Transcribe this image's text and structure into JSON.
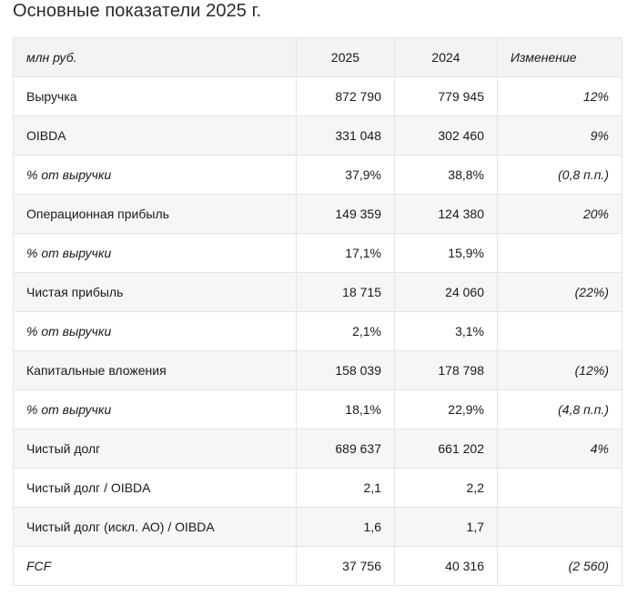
{
  "title": "Основные показатели 2025 г.",
  "table": {
    "header": {
      "label": "млн руб.",
      "year_2025": "2025",
      "year_2024": "2024",
      "change": "Изменение"
    },
    "rows": [
      {
        "label": "Выручка",
        "v2025": "872 790",
        "v2024": "779 945",
        "change": "12%",
        "italic_label": false
      },
      {
        "label": "OIBDA",
        "v2025": "331 048",
        "v2024": "302 460",
        "change": "9%",
        "italic_label": false
      },
      {
        "label": "% от выручки",
        "v2025": "37,9%",
        "v2024": "38,8%",
        "change": "(0,8 п.п.)",
        "italic_label": true
      },
      {
        "label": "Операционная прибыль",
        "v2025": "149 359",
        "v2024": "124 380",
        "change": "20%",
        "italic_label": false
      },
      {
        "label": "% от выручки",
        "v2025": "17,1%",
        "v2024": "15,9%",
        "change": "",
        "italic_label": true
      },
      {
        "label": "Чистая прибыль",
        "v2025": "18 715",
        "v2024": "24 060",
        "change": "(22%)",
        "italic_label": false
      },
      {
        "label": "% от выручки",
        "v2025": "2,1%",
        "v2024": "3,1%",
        "change": "",
        "italic_label": true
      },
      {
        "label": "Капитальные вложения",
        "v2025": "158 039",
        "v2024": "178 798",
        "change": "(12%)",
        "italic_label": false
      },
      {
        "label": "% от выручки",
        "v2025": "18,1%",
        "v2024": "22,9%",
        "change": "(4,8 п.п.)",
        "italic_label": true
      },
      {
        "label": "Чистый долг",
        "v2025": "689 637",
        "v2024": "661 202",
        "change": "4%",
        "italic_label": false
      },
      {
        "label": "Чистый долг / OIBDA",
        "v2025": "2,1",
        "v2024": "2,2",
        "change": "",
        "italic_label": false
      },
      {
        "label": "Чистый долг (искл. АО) / OIBDA",
        "v2025": "1,6",
        "v2024": "1,7",
        "change": "",
        "italic_label": false
      },
      {
        "label": "FCF",
        "v2025": "37 756",
        "v2024": "40 316",
        "change": "(2 560)",
        "italic_label": true
      }
    ]
  },
  "colors": {
    "header_bg": "#f3f3f3",
    "alt_row_bg": "#f6f6f6",
    "border": "#e4e4e4",
    "text": "#1a1a1a"
  }
}
